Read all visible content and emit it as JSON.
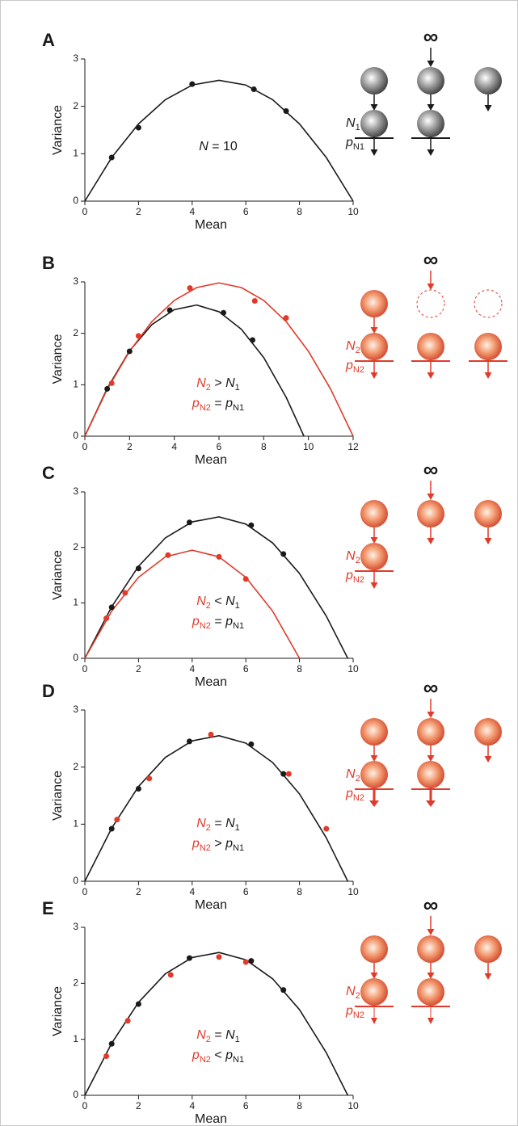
{
  "chart_data": [
    {
      "type": "scatter",
      "label": "A",
      "xlabel": "Mean",
      "ylabel": "Variance",
      "xlim": [
        0,
        10
      ],
      "ylim": [
        0,
        3
      ],
      "xticks": [
        0,
        2,
        4,
        6,
        8,
        10
      ],
      "yticks": [
        0,
        1,
        2,
        3
      ],
      "series": [
        {
          "mode": "line",
          "color": "#1a1a1a",
          "x": [
            0,
            1,
            2,
            3,
            4,
            5,
            6,
            7,
            8,
            9,
            10
          ],
          "values": [
            0,
            0.92,
            1.63,
            2.14,
            2.45,
            2.55,
            2.45,
            2.14,
            1.63,
            0.92,
            0
          ]
        },
        {
          "mode": "points",
          "color": "#1a1a1a",
          "x": [
            1,
            2,
            4,
            6.3,
            7.5
          ],
          "values": [
            0.92,
            1.55,
            2.47,
            2.36,
            1.9
          ]
        }
      ],
      "annotation": [
        [
          {
            "text": "N",
            "style": "italic"
          },
          {
            "text": " = 10"
          }
        ]
      ],
      "diagram": {
        "infinity": "∞",
        "labels": [
          [
            {
              "text": "N",
              "style": "italic"
            },
            {
              "text": "1",
              "style": "sub"
            }
          ],
          [
            {
              "text": "p",
              "style": "italic"
            },
            {
              "text": "N1",
              "style": "sub"
            }
          ]
        ]
      }
    },
    {
      "type": "scatter",
      "label": "B",
      "xlabel": "Mean",
      "ylabel": "Variance",
      "xlim": [
        0,
        12
      ],
      "ylim": [
        0,
        3
      ],
      "xticks": [
        0,
        2,
        4,
        6,
        8,
        10,
        12
      ],
      "yticks": [
        0,
        1,
        2,
        3
      ],
      "series": [
        {
          "mode": "line",
          "color": "#1a1a1a",
          "x": [
            0,
            1,
            2,
            3,
            4,
            5,
            6,
            7,
            8,
            9,
            9.8
          ],
          "values": [
            0,
            0.93,
            1.66,
            2.17,
            2.46,
            2.55,
            2.42,
            2.08,
            1.53,
            0.76,
            0
          ]
        },
        {
          "mode": "line",
          "color": "#e03a2a",
          "x": [
            0,
            1,
            2,
            3,
            4,
            5,
            6,
            7,
            8,
            9,
            10,
            11,
            12
          ],
          "values": [
            0,
            0.91,
            1.65,
            2.23,
            2.64,
            2.89,
            2.98,
            2.89,
            2.64,
            2.23,
            1.65,
            0.91,
            0
          ]
        },
        {
          "mode": "points",
          "color": "#1a1a1a",
          "x": [
            1,
            2,
            3.8,
            6.2,
            7.5
          ],
          "values": [
            0.92,
            1.65,
            2.45,
            2.4,
            1.87
          ]
        },
        {
          "mode": "points",
          "color": "#e03a2a",
          "x": [
            1.2,
            2.4,
            4.7,
            7.6,
            9
          ],
          "values": [
            1.03,
            1.95,
            2.88,
            2.63,
            2.3
          ]
        }
      ],
      "annotation": [
        [
          {
            "text": "N",
            "style": "italic",
            "color": "#e03a2a"
          },
          {
            "text": "2",
            "style": "sub",
            "color": "#e03a2a"
          },
          {
            "text": " > "
          },
          {
            "text": "N",
            "style": "italic"
          },
          {
            "text": "1",
            "style": "sub"
          }
        ],
        [
          {
            "text": "p",
            "style": "italic",
            "color": "#e03a2a"
          },
          {
            "text": "N2",
            "style": "sub",
            "color": "#e03a2a"
          },
          {
            "text": " = "
          },
          {
            "text": "p",
            "style": "italic"
          },
          {
            "text": "N1",
            "style": "sub"
          }
        ]
      ],
      "diagram": {
        "infinity": "∞",
        "labels": [
          [
            {
              "text": "N",
              "style": "italic"
            },
            {
              "text": "2",
              "style": "sub"
            }
          ],
          [
            {
              "text": "p",
              "style": "italic"
            },
            {
              "text": "N2",
              "style": "sub"
            }
          ]
        ]
      }
    },
    {
      "type": "scatter",
      "label": "C",
      "xlabel": "Mean",
      "ylabel": "Variance",
      "xlim": [
        0,
        10
      ],
      "ylim": [
        0,
        3
      ],
      "xticks": [
        0,
        2,
        4,
        6,
        8,
        10
      ],
      "yticks": [
        0,
        1,
        2,
        3
      ],
      "series": [
        {
          "mode": "line",
          "color": "#1a1a1a",
          "x": [
            0,
            1,
            2,
            3,
            4,
            5,
            6,
            7,
            8,
            9,
            9.8
          ],
          "values": [
            0,
            0.93,
            1.66,
            2.17,
            2.46,
            2.55,
            2.42,
            2.08,
            1.53,
            0.76,
            0
          ]
        },
        {
          "mode": "line",
          "color": "#e03a2a",
          "x": [
            0,
            1,
            2,
            3,
            4,
            5,
            6,
            7,
            8
          ],
          "values": [
            0,
            0.85,
            1.46,
            1.83,
            1.95,
            1.83,
            1.46,
            0.85,
            0
          ]
        },
        {
          "mode": "points",
          "color": "#1a1a1a",
          "x": [
            1,
            2,
            3.9,
            6.2,
            7.4
          ],
          "values": [
            0.92,
            1.62,
            2.45,
            2.4,
            1.88
          ]
        },
        {
          "mode": "points",
          "color": "#e03a2a",
          "x": [
            0.8,
            1.5,
            3.1,
            5,
            6
          ],
          "values": [
            0.72,
            1.18,
            1.86,
            1.83,
            1.43
          ]
        }
      ],
      "annotation": [
        [
          {
            "text": "N",
            "style": "italic",
            "color": "#e03a2a"
          },
          {
            "text": "2",
            "style": "sub",
            "color": "#e03a2a"
          },
          {
            "text": " < "
          },
          {
            "text": "N",
            "style": "italic"
          },
          {
            "text": "1",
            "style": "sub"
          }
        ],
        [
          {
            "text": "p",
            "style": "italic",
            "color": "#e03a2a"
          },
          {
            "text": "N2",
            "style": "sub",
            "color": "#e03a2a"
          },
          {
            "text": " = "
          },
          {
            "text": "p",
            "style": "italic"
          },
          {
            "text": "N1",
            "style": "sub"
          }
        ]
      ],
      "diagram": {
        "infinity": "∞",
        "labels": [
          [
            {
              "text": "N",
              "style": "italic"
            },
            {
              "text": "2",
              "style": "sub"
            }
          ],
          [
            {
              "text": "p",
              "style": "italic"
            },
            {
              "text": "N2",
              "style": "sub"
            }
          ]
        ]
      }
    },
    {
      "type": "scatter",
      "label": "D",
      "xlabel": "Mean",
      "ylabel": "Variance",
      "xlim": [
        0,
        10
      ],
      "ylim": [
        0,
        3
      ],
      "xticks": [
        0,
        2,
        4,
        6,
        8,
        10
      ],
      "yticks": [
        0,
        1,
        2,
        3
      ],
      "series": [
        {
          "mode": "line",
          "color": "#1a1a1a",
          "x": [
            0,
            1,
            2,
            3,
            4,
            5,
            6,
            7,
            8,
            9,
            9.8
          ],
          "values": [
            0,
            0.93,
            1.66,
            2.17,
            2.46,
            2.55,
            2.42,
            2.08,
            1.53,
            0.76,
            0
          ]
        },
        {
          "mode": "points",
          "color": "#1a1a1a",
          "x": [
            1,
            2,
            3.9,
            6.2,
            7.4
          ],
          "values": [
            0.92,
            1.62,
            2.45,
            2.4,
            1.88
          ]
        },
        {
          "mode": "points",
          "color": "#e03a2a",
          "x": [
            1.2,
            2.4,
            4.7,
            7.6,
            9
          ],
          "values": [
            1.08,
            1.8,
            2.57,
            1.88,
            0.92
          ]
        }
      ],
      "annotation": [
        [
          {
            "text": "N",
            "style": "italic",
            "color": "#e03a2a"
          },
          {
            "text": "2",
            "style": "sub",
            "color": "#e03a2a"
          },
          {
            "text": " = "
          },
          {
            "text": "N",
            "style": "italic"
          },
          {
            "text": "1",
            "style": "sub"
          }
        ],
        [
          {
            "text": "p",
            "style": "italic",
            "color": "#e03a2a"
          },
          {
            "text": "N2",
            "style": "sub",
            "color": "#e03a2a"
          },
          {
            "text": " > "
          },
          {
            "text": "p",
            "style": "italic"
          },
          {
            "text": "N1",
            "style": "sub"
          }
        ]
      ],
      "diagram": {
        "infinity": "∞",
        "labels": [
          [
            {
              "text": "N",
              "style": "italic"
            },
            {
              "text": "2",
              "style": "sub"
            }
          ],
          [
            {
              "text": "p",
              "style": "italic"
            },
            {
              "text": "N2",
              "style": "sub"
            }
          ]
        ]
      }
    },
    {
      "type": "scatter",
      "label": "E",
      "xlabel": "Mean",
      "ylabel": "Variance",
      "xlim": [
        0,
        10
      ],
      "ylim": [
        0,
        3
      ],
      "xticks": [
        0,
        2,
        4,
        6,
        8,
        10
      ],
      "yticks": [
        0,
        1,
        2,
        3
      ],
      "series": [
        {
          "mode": "line",
          "color": "#1a1a1a",
          "x": [
            0,
            1,
            2,
            3,
            4,
            5,
            6,
            7,
            8,
            9,
            9.8
          ],
          "values": [
            0,
            0.93,
            1.66,
            2.17,
            2.46,
            2.55,
            2.42,
            2.08,
            1.53,
            0.76,
            0
          ]
        },
        {
          "mode": "points",
          "color": "#1a1a1a",
          "x": [
            1,
            2,
            3.9,
            6.2,
            7.4
          ],
          "values": [
            0.92,
            1.63,
            2.45,
            2.4,
            1.88
          ]
        },
        {
          "mode": "points",
          "color": "#e03a2a",
          "x": [
            0.8,
            1.6,
            3.2,
            5,
            6
          ],
          "values": [
            0.7,
            1.33,
            2.15,
            2.47,
            2.38
          ]
        }
      ],
      "annotation": [
        [
          {
            "text": "N",
            "style": "italic",
            "color": "#e03a2a"
          },
          {
            "text": "2",
            "style": "sub",
            "color": "#e03a2a"
          },
          {
            "text": " = "
          },
          {
            "text": "N",
            "style": "italic"
          },
          {
            "text": "1",
            "style": "sub"
          }
        ],
        [
          {
            "text": "p",
            "style": "italic",
            "color": "#e03a2a"
          },
          {
            "text": "N2",
            "style": "sub",
            "color": "#e03a2a"
          },
          {
            "text": " < "
          },
          {
            "text": "p",
            "style": "italic"
          },
          {
            "text": "N1",
            "style": "sub"
          }
        ]
      ],
      "diagram": {
        "infinity": "∞",
        "labels": [
          [
            {
              "text": "N",
              "style": "italic"
            },
            {
              "text": "2",
              "style": "sub"
            }
          ],
          [
            {
              "text": "p",
              "style": "italic"
            },
            {
              "text": "N2",
              "style": "sub"
            }
          ]
        ]
      }
    }
  ]
}
